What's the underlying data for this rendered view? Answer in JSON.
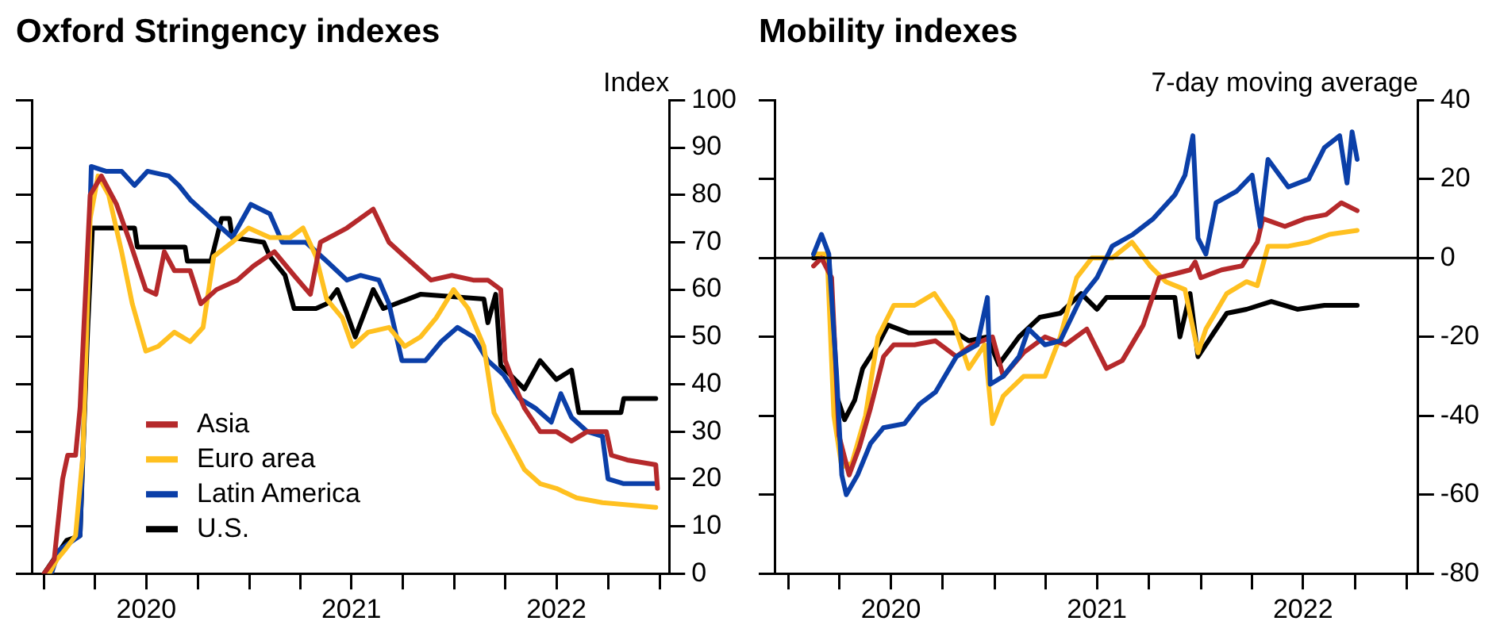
{
  "chart_data": [
    {
      "type": "line",
      "title": "Oxford Stringency indexes",
      "ylabel": "Index",
      "xlim": [
        "2019-12-10",
        "2023-01-18"
      ],
      "ylim": [
        0,
        100
      ],
      "yticks": [
        0,
        10,
        20,
        30,
        40,
        50,
        60,
        70,
        80,
        90,
        100
      ],
      "xticks": [
        {
          "value": "2020-01-01",
          "label": null
        },
        {
          "value": "2020-04-01",
          "label": null
        },
        {
          "value": "2020-07-01",
          "label": "2020"
        },
        {
          "value": "2020-10-01",
          "label": null
        },
        {
          "value": "2021-01-01",
          "label": null
        },
        {
          "value": "2021-04-01",
          "label": null
        },
        {
          "value": "2021-07-01",
          "label": "2021"
        },
        {
          "value": "2021-10-01",
          "label": null
        },
        {
          "value": "2022-01-01",
          "label": null
        },
        {
          "value": "2022-04-01",
          "label": null
        },
        {
          "value": "2022-07-01",
          "label": "2022"
        },
        {
          "value": "2022-10-01",
          "label": null
        },
        {
          "value": "2023-01-01",
          "label": null
        }
      ],
      "grid": false,
      "legend": "bottom left",
      "marker": "none",
      "line_style": "solid",
      "series": [
        {
          "name": "Asia",
          "color": "#b5292b",
          "x": [
            "2020-01-01",
            "2020-01-19",
            "2020-02-03",
            "2020-02-12",
            "2020-02-26",
            "2020-03-05",
            "2020-03-23",
            "2020-04-12",
            "2020-05-09",
            "2020-06-02",
            "2020-06-30",
            "2020-07-18",
            "2020-08-02",
            "2020-08-20",
            "2020-09-17",
            "2020-10-06",
            "2020-11-03",
            "2020-12-10",
            "2021-01-08",
            "2021-02-14",
            "2021-03-21",
            "2021-04-19",
            "2021-05-07",
            "2021-06-23",
            "2021-08-09",
            "2021-09-06",
            "2021-10-13",
            "2021-11-20",
            "2021-12-27",
            "2022-02-03",
            "2022-03-01",
            "2022-03-24",
            "2022-04-01",
            "2022-04-17",
            "2022-05-05",
            "2022-06-02",
            "2022-07-01",
            "2022-07-28",
            "2022-08-25",
            "2022-09-28",
            "2022-10-07",
            "2022-11-04",
            "2022-12-25",
            "2022-12-28"
          ],
          "values": [
            0,
            3,
            20,
            25,
            25,
            35,
            80,
            84,
            78,
            70,
            60,
            59,
            68,
            64,
            64,
            57,
            60,
            62,
            65,
            68,
            63,
            59,
            70,
            73,
            77,
            70,
            66,
            62,
            63,
            62,
            62,
            60,
            45,
            40,
            35,
            30,
            30,
            28,
            30,
            30,
            25,
            24,
            23,
            18
          ]
        },
        {
          "name": "Euro area",
          "color": "#ffc020",
          "x": [
            "2020-01-10",
            "2020-01-24",
            "2020-02-07",
            "2020-02-26",
            "2020-03-10",
            "2020-03-23",
            "2020-04-06",
            "2020-04-25",
            "2020-05-18",
            "2020-06-06",
            "2020-06-30",
            "2020-07-22",
            "2020-08-20",
            "2020-09-17",
            "2020-10-10",
            "2020-10-29",
            "2020-12-01",
            "2020-12-30",
            "2021-02-06",
            "2021-03-14",
            "2021-04-06",
            "2021-04-29",
            "2021-05-18",
            "2021-06-15",
            "2021-07-03",
            "2021-07-31",
            "2021-09-06",
            "2021-10-04",
            "2021-11-01",
            "2021-11-29",
            "2021-12-30",
            "2022-01-25",
            "2022-02-22",
            "2022-03-12",
            "2022-04-08",
            "2022-05-05",
            "2022-06-02",
            "2022-07-01",
            "2022-08-06",
            "2022-09-21",
            "2022-12-25"
          ],
          "values": [
            0,
            3,
            5,
            8,
            25,
            75,
            84,
            80,
            68,
            57,
            47,
            48,
            51,
            49,
            52,
            67,
            70,
            73,
            71,
            71,
            73,
            67,
            58,
            54,
            48,
            51,
            52,
            48,
            50,
            54,
            60,
            56,
            48,
            34,
            28,
            22,
            19,
            18,
            16,
            15,
            14
          ]
        },
        {
          "name": "Latin America",
          "color": "#0b3fa8",
          "x": [
            "2020-01-14",
            "2020-01-28",
            "2020-03-05",
            "2020-03-14",
            "2020-03-25",
            "2020-04-20",
            "2020-05-18",
            "2020-06-10",
            "2020-07-03",
            "2020-08-10",
            "2020-08-28",
            "2020-09-17",
            "2020-10-24",
            "2020-12-01",
            "2021-01-03",
            "2021-02-06",
            "2021-02-28",
            "2021-04-11",
            "2021-05-18",
            "2021-06-23",
            "2021-07-17",
            "2021-08-19",
            "2021-09-06",
            "2021-09-29",
            "2021-11-10",
            "2021-12-08",
            "2022-01-06",
            "2022-02-03",
            "2022-03-01",
            "2022-03-29",
            "2022-04-26",
            "2022-05-24",
            "2022-06-22",
            "2022-07-09",
            "2022-07-28",
            "2022-08-25",
            "2022-09-21",
            "2022-10-01",
            "2022-10-29",
            "2022-12-25"
          ],
          "values": [
            0,
            5,
            8,
            40,
            86,
            85,
            85,
            82,
            85,
            84,
            82,
            79,
            75,
            71,
            78,
            76,
            70,
            70,
            66,
            62,
            63,
            62,
            57,
            45,
            45,
            49,
            52,
            50,
            45,
            42,
            37,
            35,
            32,
            38,
            33,
            30,
            29,
            20,
            19,
            19
          ]
        },
        {
          "name": "U.S.",
          "color": "#000000",
          "x": [
            "2020-01-01",
            "2020-02-10",
            "2020-03-05",
            "2020-03-18",
            "2020-03-27",
            "2020-06-10",
            "2020-06-15",
            "2020-09-08",
            "2020-09-12",
            "2020-10-24",
            "2020-11-12",
            "2020-11-26",
            "2020-12-01",
            "2021-01-26",
            "2021-02-06",
            "2021-03-05",
            "2021-03-21",
            "2021-04-29",
            "2021-05-18",
            "2021-06-06",
            "2021-06-23",
            "2021-07-08",
            "2021-08-09",
            "2021-08-27",
            "2021-11-01",
            "2022-02-22",
            "2022-03-01",
            "2022-03-15",
            "2022-03-24",
            "2022-05-05",
            "2022-06-02",
            "2022-07-01",
            "2022-07-28",
            "2022-08-10",
            "2022-10-24",
            "2022-10-29",
            "2022-12-25"
          ],
          "values": [
            0,
            7,
            8,
            50,
            73,
            73,
            69,
            69,
            66,
            66,
            75,
            75,
            71,
            70,
            67,
            63,
            56,
            56,
            57,
            60,
            55,
            50,
            60,
            56,
            59,
            58,
            53,
            59,
            44,
            39,
            45,
            41,
            43,
            34,
            34,
            37,
            37
          ]
        }
      ]
    },
    {
      "type": "line",
      "title": "Mobility indexes",
      "ylabel": "7-day moving average",
      "xlim": [
        "2019-12-08",
        "2023-01-21"
      ],
      "ylim": [
        -80,
        40
      ],
      "yticks": [
        -80,
        -60,
        -40,
        -20,
        0,
        20,
        40
      ],
      "xticks": [
        {
          "value": "2020-01-01",
          "label": null
        },
        {
          "value": "2020-04-01",
          "label": null
        },
        {
          "value": "2020-07-01",
          "label": "2020"
        },
        {
          "value": "2020-10-01",
          "label": null
        },
        {
          "value": "2021-01-01",
          "label": null
        },
        {
          "value": "2021-04-01",
          "label": null
        },
        {
          "value": "2021-07-01",
          "label": "2021"
        },
        {
          "value": "2021-10-01",
          "label": null
        },
        {
          "value": "2022-01-01",
          "label": null
        },
        {
          "value": "2022-04-01",
          "label": null
        },
        {
          "value": "2022-07-01",
          "label": "2022"
        },
        {
          "value": "2022-10-01",
          "label": null
        },
        {
          "value": "2023-01-01",
          "label": null
        }
      ],
      "grid": false,
      "marker": "none",
      "line_style": "solid",
      "ref_lines": [
        {
          "axis": "y",
          "value": 0,
          "color": "#000000"
        }
      ],
      "series": [
        {
          "color": "#0b3fa8",
          "x": [
            "2020-02-15",
            "2020-02-29",
            "2020-03-13",
            "2020-03-27",
            "2020-04-05",
            "2020-04-13",
            "2020-05-03",
            "2020-05-26",
            "2020-06-18",
            "2020-07-25",
            "2020-08-21",
            "2020-09-18",
            "2020-10-25",
            "2020-12-01",
            "2020-12-19",
            "2020-12-24",
            "2021-01-16",
            "2021-02-13",
            "2021-03-02",
            "2021-03-31",
            "2021-04-27",
            "2021-06-03",
            "2021-07-01",
            "2021-07-28",
            "2021-09-03",
            "2021-10-09",
            "2021-11-16",
            "2021-12-04",
            "2021-12-18",
            "2021-12-27",
            "2022-01-10",
            "2022-01-28",
            "2022-03-06",
            "2022-04-02",
            "2022-04-16",
            "2022-04-30",
            "2022-06-05",
            "2022-07-11",
            "2022-08-08",
            "2022-09-04",
            "2022-09-17",
            "2022-09-26",
            "2022-10-05"
          ],
          "values": [
            1,
            6,
            1,
            -30,
            -55,
            -60,
            -55,
            -47,
            -43,
            -42,
            -37,
            -34,
            -25,
            -22,
            -10,
            -32,
            -30,
            -25,
            -18,
            -22,
            -21,
            -10,
            -5,
            3,
            6,
            10,
            16,
            21,
            31,
            5,
            1,
            14,
            17,
            21,
            8,
            25,
            18,
            20,
            28,
            31,
            19,
            32,
            25
          ]
        },
        {
          "color": "#b5292b",
          "x": [
            "2020-02-15",
            "2020-02-29",
            "2020-03-18",
            "2020-03-31",
            "2020-04-18",
            "2020-05-06",
            "2020-05-26",
            "2020-06-18",
            "2020-07-06",
            "2020-08-12",
            "2020-09-18",
            "2020-10-25",
            "2020-11-22",
            "2020-12-28",
            "2021-01-16",
            "2021-02-21",
            "2021-03-31",
            "2021-05-06",
            "2021-06-13",
            "2021-07-18",
            "2021-08-15",
            "2021-09-21",
            "2021-10-19",
            "2021-11-16",
            "2021-12-13",
            "2021-12-22",
            "2022-01-01",
            "2022-02-07",
            "2022-03-15",
            "2022-04-11",
            "2022-04-21",
            "2022-05-30",
            "2022-07-05",
            "2022-08-11",
            "2022-09-07",
            "2022-10-05"
          ],
          "values": [
            -2,
            0,
            -5,
            -45,
            -55,
            -48,
            -38,
            -25,
            -22,
            -22,
            -21,
            -25,
            -22,
            -20,
            -30,
            -24,
            -20,
            -22,
            -18,
            -28,
            -26,
            -17,
            -5,
            -4,
            -3,
            -1,
            -5,
            -3,
            -2,
            4,
            10,
            8,
            10,
            11,
            14,
            12
          ]
        },
        {
          "color": "#ffc020",
          "x": [
            "2020-02-15",
            "2020-03-10",
            "2020-03-22",
            "2020-04-05",
            "2020-04-23",
            "2020-05-17",
            "2020-06-08",
            "2020-07-06",
            "2020-08-12",
            "2020-09-16",
            "2020-10-19",
            "2020-11-16",
            "2020-12-14",
            "2020-12-28",
            "2021-01-16",
            "2021-02-21",
            "2021-03-31",
            "2021-04-27",
            "2021-05-26",
            "2021-06-22",
            "2021-07-28",
            "2021-09-01",
            "2021-10-03",
            "2021-10-31",
            "2021-12-04",
            "2021-12-27",
            "2022-01-10",
            "2022-02-16",
            "2022-03-23",
            "2022-04-11",
            "2022-04-30",
            "2022-06-05",
            "2022-07-11",
            "2022-08-17",
            "2022-10-05"
          ],
          "values": [
            1,
            1,
            -40,
            -53,
            -52,
            -40,
            -20,
            -12,
            -12,
            -9,
            -16,
            -28,
            -22,
            -42,
            -35,
            -30,
            -30,
            -20,
            -5,
            0,
            0,
            4,
            -2,
            -6,
            -8,
            -24,
            -18,
            -9,
            -6,
            -7,
            3,
            3,
            4,
            6,
            7
          ]
        },
        {
          "color": "#000000",
          "x": [
            "2020-02-15",
            "2020-03-13",
            "2020-03-27",
            "2020-04-10",
            "2020-04-28",
            "2020-05-12",
            "2020-06-08",
            "2020-06-26",
            "2020-08-02",
            "2020-09-18",
            "2020-10-25",
            "2020-11-16",
            "2020-12-19",
            "2021-01-08",
            "2021-02-13",
            "2021-03-22",
            "2021-04-27",
            "2021-06-03",
            "2021-07-01",
            "2021-07-18",
            "2021-09-21",
            "2021-11-16",
            "2021-11-25",
            "2021-12-13",
            "2021-12-27",
            "2022-01-19",
            "2022-02-16",
            "2022-03-23",
            "2022-05-06",
            "2022-06-21",
            "2022-08-08",
            "2022-10-05"
          ],
          "values": [
            0,
            0,
            -35,
            -41,
            -36,
            -28,
            -22,
            -17,
            -19,
            -19,
            -19,
            -21,
            -20,
            -27,
            -20,
            -15,
            -14,
            -9,
            -13,
            -10,
            -10,
            -10,
            -20,
            -9,
            -25,
            -20,
            -14,
            -13,
            -11,
            -13,
            -12,
            -12
          ]
        }
      ]
    }
  ]
}
